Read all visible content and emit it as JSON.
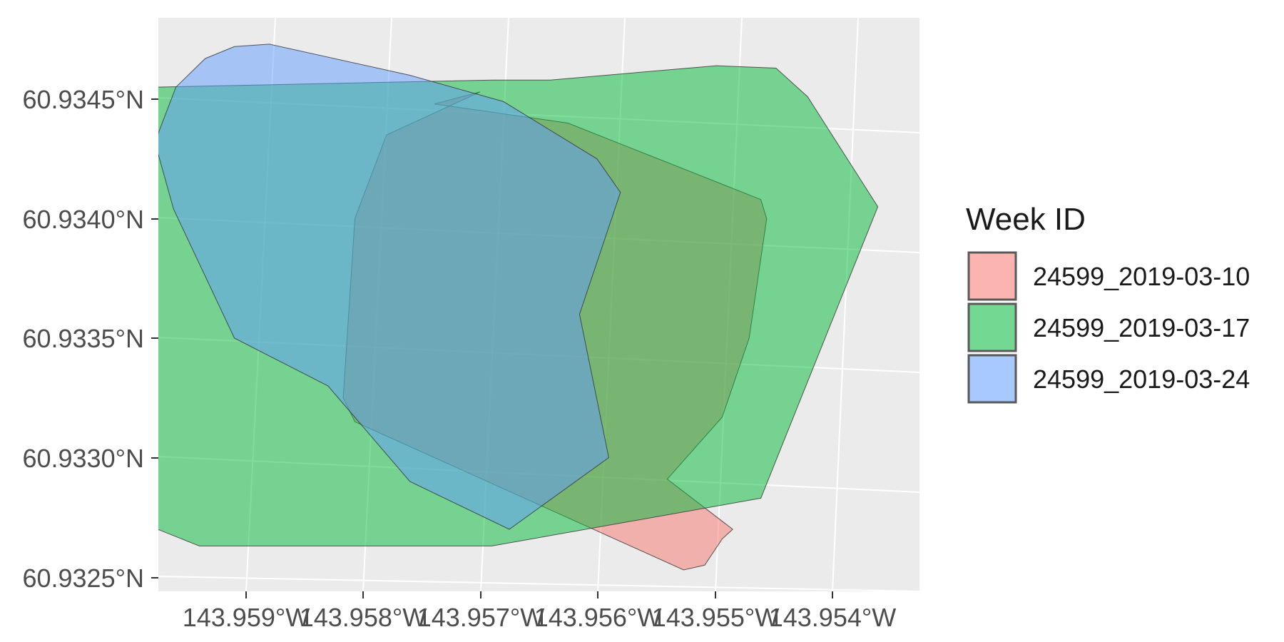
{
  "chart_data": {
    "type": "map",
    "title": "",
    "xlabel": "",
    "ylabel": "",
    "grid": true,
    "legend_placement": "right",
    "xlim": [
      -143.96,
      -143.9535
    ],
    "ylim": [
      60.93245,
      60.93485
    ],
    "x_ticks": [
      {
        "value": -143.959,
        "label": "143.959°W"
      },
      {
        "value": -143.958,
        "label": "143.958°W"
      },
      {
        "value": -143.957,
        "label": "143.957°W"
      },
      {
        "value": -143.956,
        "label": "143.956°W"
      },
      {
        "value": -143.955,
        "label": "143.955°W"
      },
      {
        "value": -143.954,
        "label": "143.954°W"
      }
    ],
    "y_ticks": [
      {
        "value": 60.9345,
        "label": "60.9345°N"
      },
      {
        "value": 60.934,
        "label": "60.9340°N"
      },
      {
        "value": 60.9335,
        "label": "60.9335°N"
      },
      {
        "value": 60.933,
        "label": "60.9330°N"
      },
      {
        "value": 60.9325,
        "label": "60.9325°N"
      }
    ],
    "legend": {
      "title": "Week ID",
      "entries": [
        {
          "label": "24599_2019-03-10",
          "color": "#F8766D"
        },
        {
          "label": "24599_2019-03-17",
          "color": "#00BA38"
        },
        {
          "label": "24599_2019-03-24",
          "color": "#619CFF"
        }
      ]
    },
    "series": [
      {
        "name": "24599_2019-03-10",
        "color": "#F8766D",
        "opacity": 0.5,
        "polygon": [
          [
            -143.95739,
            60.93448
          ],
          [
            -143.95625,
            60.9344
          ],
          [
            -143.9546,
            60.93408
          ],
          [
            -143.95455,
            60.934
          ],
          [
            -143.9547,
            60.9335
          ],
          [
            -143.95493,
            60.93317
          ],
          [
            -143.9554,
            60.93291
          ],
          [
            -143.95484,
            60.9327
          ],
          [
            -143.95493,
            60.93266
          ],
          [
            -143.95508,
            60.93255
          ],
          [
            -143.95526,
            60.93253
          ],
          [
            -143.95807,
            60.93315
          ],
          [
            -143.95817,
            60.93325
          ],
          [
            -143.95807,
            60.934
          ],
          [
            -143.9578,
            60.93435
          ],
          [
            -143.957,
            60.93453
          ]
        ]
      },
      {
        "name": "24599_2019-03-17",
        "color": "#00BA38",
        "opacity": 0.5,
        "polygon": [
          [
            -143.95689,
            60.93458
          ],
          [
            -143.9564,
            60.93458
          ],
          [
            -143.95498,
            60.93464
          ],
          [
            -143.95447,
            60.93463
          ],
          [
            -143.9542,
            60.93451
          ],
          [
            -143.9536,
            60.93405
          ],
          [
            -143.9546,
            60.93283
          ],
          [
            -143.9569,
            60.93263
          ],
          [
            -143.9584,
            60.93263
          ],
          [
            -143.9594,
            60.93263
          ],
          [
            -143.95996,
            60.93274
          ],
          [
            -143.96188,
            60.93311
          ],
          [
            -143.96264,
            60.93368
          ],
          [
            -143.96332,
            60.93409
          ],
          [
            -143.96319,
            60.9342
          ],
          [
            -143.96263,
            60.93448
          ],
          [
            -143.96108,
            60.93453
          ],
          [
            -143.95978,
            60.93455
          ]
        ]
      },
      {
        "name": "24599_2019-03-24",
        "color": "#619CFF",
        "opacity": 0.5,
        "polygon": [
          [
            -143.9588,
            60.93473
          ],
          [
            -143.9576,
            60.9346
          ],
          [
            -143.9568,
            60.93449
          ],
          [
            -143.956,
            60.93425
          ],
          [
            -143.9558,
            60.93411
          ],
          [
            -143.95615,
            60.9336
          ],
          [
            -143.9559,
            60.933
          ],
          [
            -143.95675,
            60.9327
          ],
          [
            -143.9576,
            60.9329
          ],
          [
            -143.9583,
            60.9333
          ],
          [
            -143.9591,
            60.9335
          ],
          [
            -143.95962,
            60.93404
          ],
          [
            -143.95978,
            60.93432
          ],
          [
            -143.9596,
            60.93455
          ],
          [
            -143.95935,
            60.93467
          ],
          [
            -143.9591,
            60.93472
          ]
        ]
      }
    ]
  }
}
